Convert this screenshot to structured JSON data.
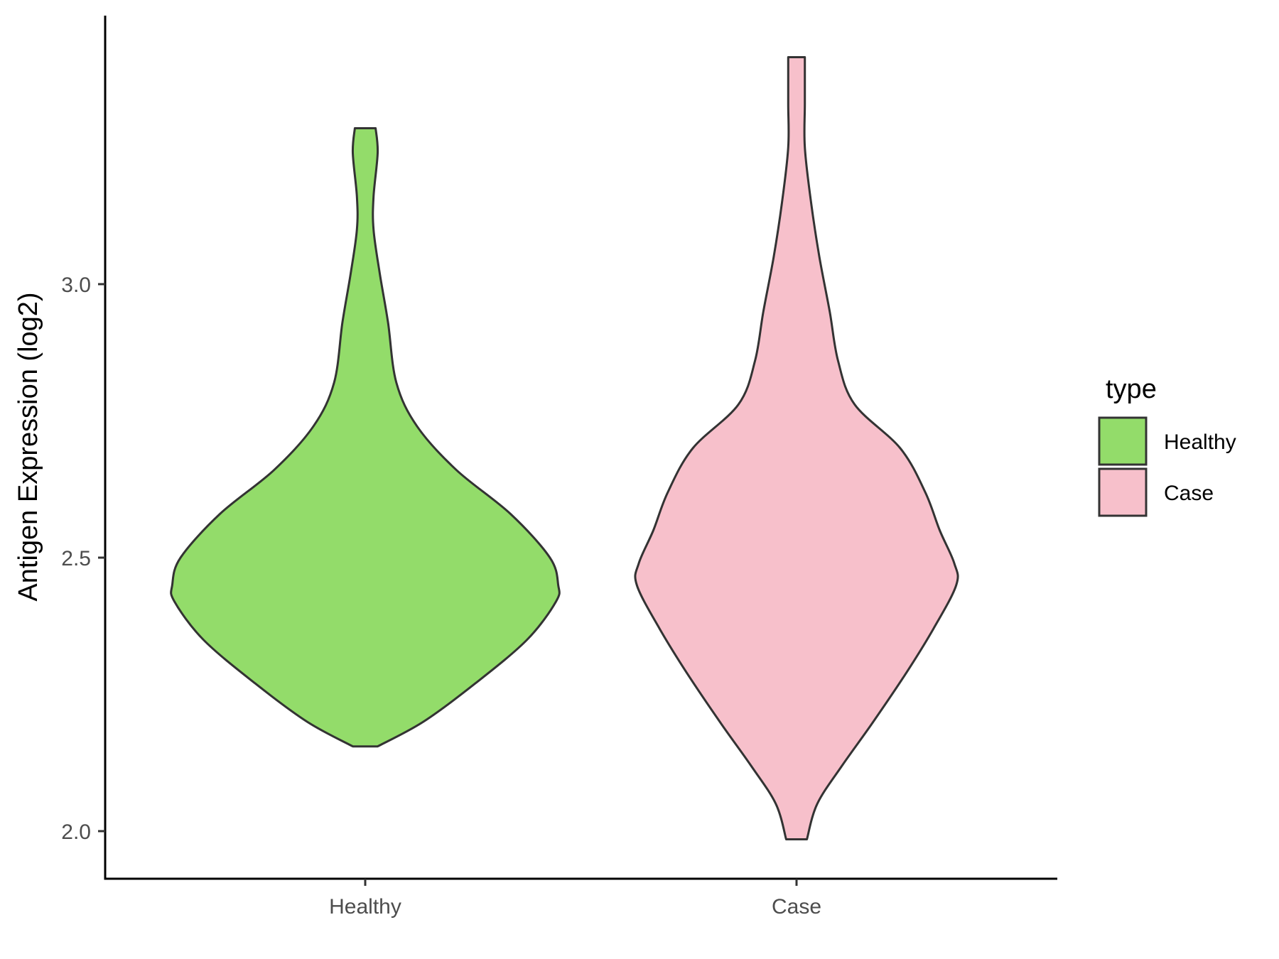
{
  "chart_data": {
    "type": "violin",
    "title": "",
    "xlabel": "",
    "ylabel": "Antigen Expression (log2)",
    "ylim": [
      1.91,
      3.48
    ],
    "yticks": [
      "2.0",
      "2.5",
      "3.0"
    ],
    "ytick_values": [
      2.0,
      2.5,
      3.0
    ],
    "categories": [
      "Healthy",
      "Case"
    ],
    "grid": false,
    "legend": {
      "title": "type",
      "placement": "right",
      "items": [
        {
          "label": "Healthy",
          "color": "#93dc6a"
        },
        {
          "label": "Case",
          "color": "#f7c0cb"
        }
      ]
    },
    "series": [
      {
        "category": "Healthy",
        "color": "#93dc6a",
        "min": 2.155,
        "max": 3.285,
        "density_profile": [
          [
            2.155,
            0.06
          ],
          [
            2.2,
            0.28
          ],
          [
            2.27,
            0.53
          ],
          [
            2.35,
            0.78
          ],
          [
            2.42,
            0.92
          ],
          [
            2.45,
            0.93
          ],
          [
            2.5,
            0.89
          ],
          [
            2.58,
            0.7
          ],
          [
            2.66,
            0.44
          ],
          [
            2.74,
            0.25
          ],
          [
            2.82,
            0.15
          ],
          [
            2.93,
            0.11
          ],
          [
            3.02,
            0.07
          ],
          [
            3.1,
            0.04
          ],
          [
            3.16,
            0.04
          ],
          [
            3.24,
            0.06
          ],
          [
            3.285,
            0.05
          ]
        ]
      },
      {
        "category": "Case",
        "color": "#f7c0cb",
        "min": 1.985,
        "max": 3.415,
        "density_profile": [
          [
            1.985,
            0.05
          ],
          [
            2.05,
            0.1
          ],
          [
            2.12,
            0.22
          ],
          [
            2.2,
            0.37
          ],
          [
            2.29,
            0.53
          ],
          [
            2.37,
            0.66
          ],
          [
            2.45,
            0.77
          ],
          [
            2.49,
            0.76
          ],
          [
            2.55,
            0.69
          ],
          [
            2.62,
            0.62
          ],
          [
            2.7,
            0.5
          ],
          [
            2.78,
            0.28
          ],
          [
            2.86,
            0.2
          ],
          [
            2.95,
            0.16
          ],
          [
            3.05,
            0.11
          ],
          [
            3.15,
            0.07
          ],
          [
            3.25,
            0.04
          ],
          [
            3.33,
            0.04
          ],
          [
            3.415,
            0.04
          ]
        ]
      }
    ]
  }
}
